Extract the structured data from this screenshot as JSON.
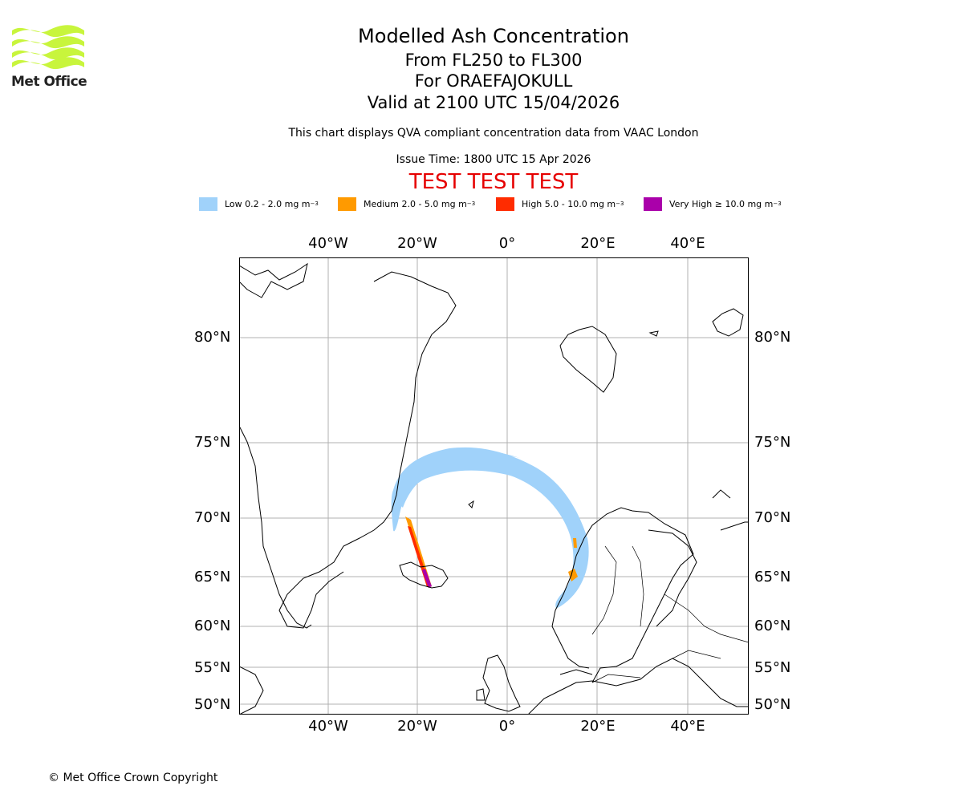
{
  "logo": {
    "text": "Met Office",
    "color": "#c8f53c"
  },
  "title": {
    "main": "Modelled Ash Concentration",
    "levels": "From FL250 to FL300",
    "volcano": "For ORAEFAJOKULL",
    "valid": "Valid at 2100 UTC 15/04/2026"
  },
  "subtitle": "This chart displays QVA compliant concentration data from VAAC London",
  "issue_time": "Issue Time: 1800 UTC 15 Apr 2026",
  "test_banner": "TEST TEST TEST",
  "legend": [
    {
      "label": "Low 0.2 - 2.0 mg m",
      "sup": "−3",
      "color": "#a0d2fa"
    },
    {
      "label": "Medium 2.0 - 5.0 mg m",
      "sup": "−3",
      "color": "#ff9a00"
    },
    {
      "label": "High 5.0 - 10.0 mg m",
      "sup": "−3",
      "color": "#ff2c00"
    },
    {
      "label": "Very High  ≥  10.0 mg m",
      "sup": "−3",
      "color": "#aa00aa"
    }
  ],
  "map": {
    "lon_ticks": [
      "40°W",
      "20°W",
      "0°",
      "20°E",
      "40°E"
    ],
    "lat_ticks": [
      "80°N",
      "75°N",
      "70°N",
      "65°N",
      "60°N",
      "55°N",
      "50°N"
    ],
    "extent": {
      "lon": [
        -60,
        53
      ],
      "lat": [
        49,
        83
      ]
    }
  },
  "copyright": "© Met Office Crown Copyright"
}
